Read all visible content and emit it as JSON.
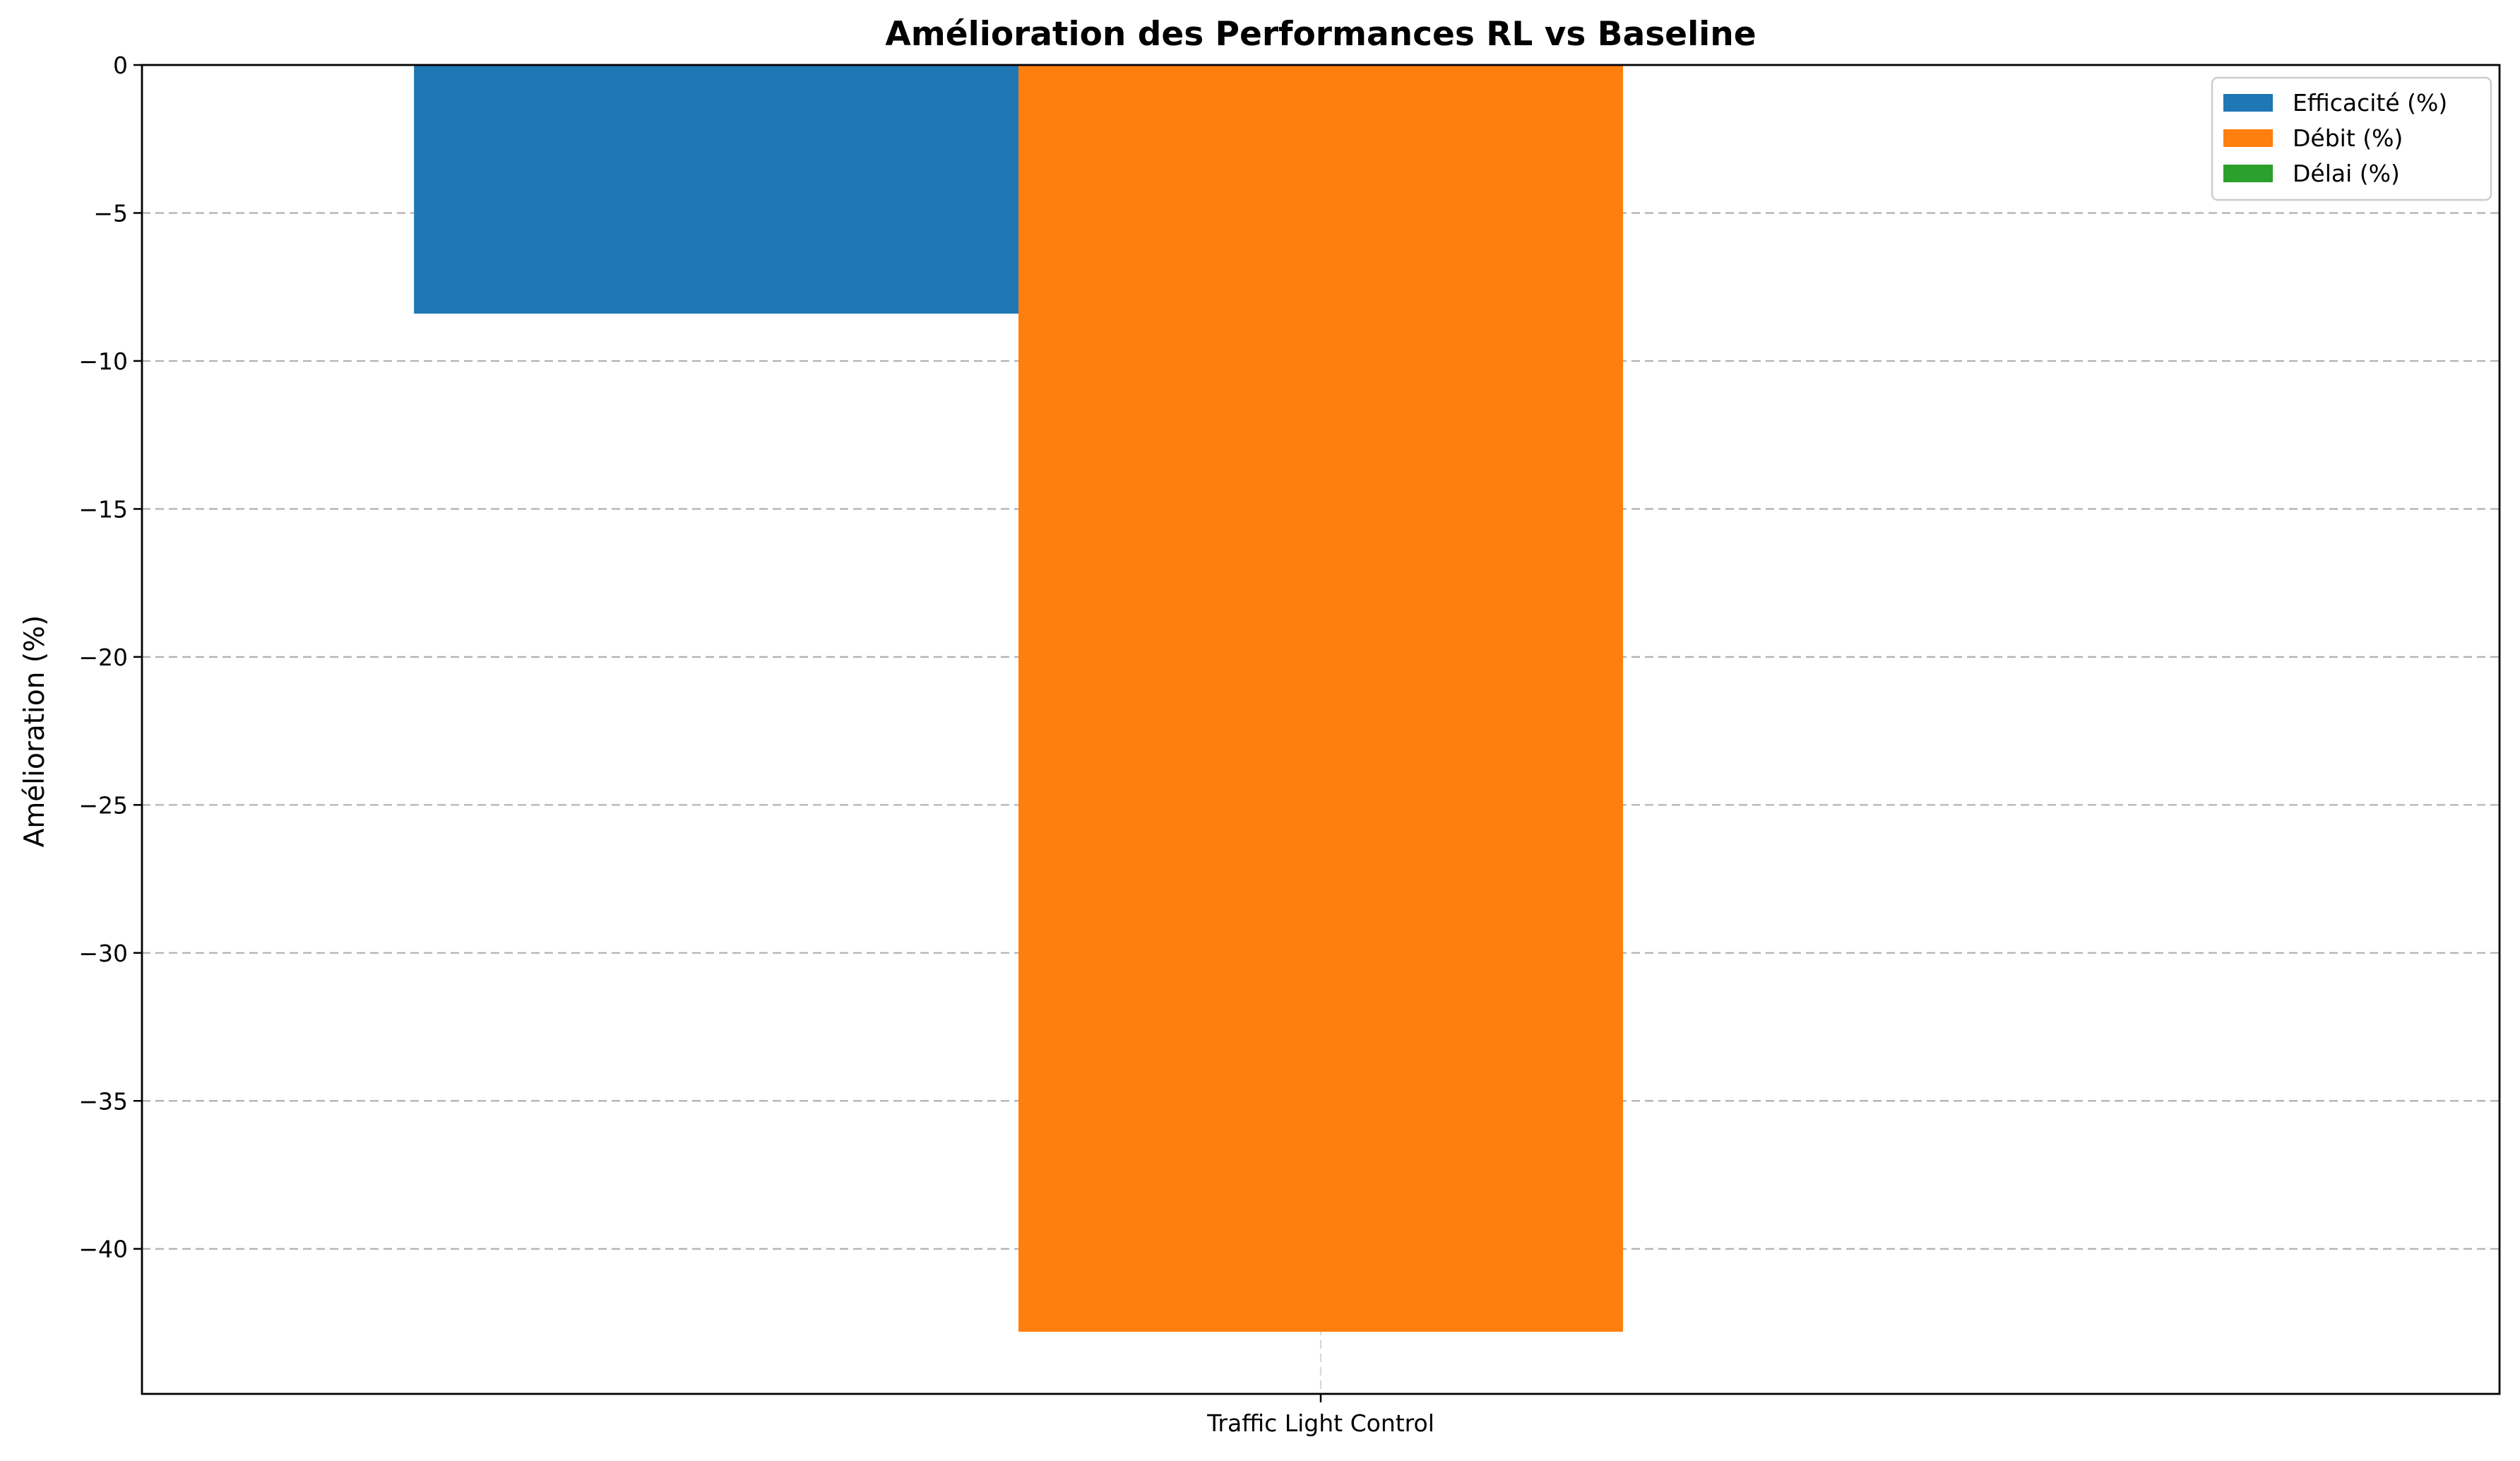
{
  "chart_data": {
    "type": "bar",
    "title": "Amélioration des Performances RL vs Baseline",
    "xlabel": "",
    "ylabel": "Amélioration (%)",
    "categories": [
      "Traffic Light Control"
    ],
    "series": [
      {
        "name": "Efficacité (%)",
        "values": [
          -8.4
        ],
        "color": "#1f77b4"
      },
      {
        "name": "Débit (%)",
        "values": [
          -42.8
        ],
        "color": "#ff7f0e"
      },
      {
        "name": "Délai (%)",
        "values": [
          0
        ],
        "color": "#2ca02c"
      }
    ],
    "ylim": [
      -44.9,
      0
    ],
    "yticks": [
      0,
      -5,
      -10,
      -15,
      -20,
      -25,
      -30,
      -35,
      -40
    ],
    "ytick_labels": [
      "0",
      "−5",
      "−10",
      "−15",
      "−20",
      "−25",
      "−30",
      "−35",
      "−40"
    ],
    "grid": true,
    "legend_position": "top-right"
  }
}
